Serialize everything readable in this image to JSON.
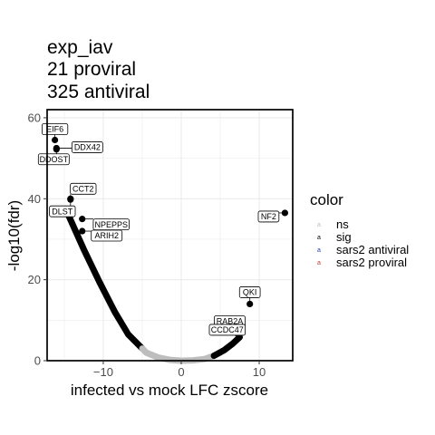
{
  "colors": {
    "panel_background": "#ffffff",
    "grid": "#ebebeb",
    "border": "#000000",
    "ns": "#bdbdbd",
    "sig": "#000000",
    "sars2_antiviral": "#1f3bb3",
    "sars2_proviral": "#c0392b"
  },
  "chart_data": {
    "type": "scatter",
    "title": [
      "exp_iav",
      "21 proviral",
      "325 antiviral"
    ],
    "xlabel": "infected vs mock LFC zscore",
    "ylabel": "-log10(fdr)",
    "xlim": [
      -17.2,
      14.3
    ],
    "ylim": [
      0,
      62
    ],
    "x_ticks": [
      -10,
      0,
      10
    ],
    "x_tick_labels": [
      "−10",
      "0",
      "10"
    ],
    "y_ticks": [
      0,
      20,
      40,
      60
    ],
    "y_tick_labels": [
      "0",
      "20",
      "40",
      "60"
    ],
    "grid": true,
    "legend": {
      "title": "color",
      "position": "right",
      "entries": [
        {
          "key": "ns",
          "label": "ns"
        },
        {
          "key": "sig",
          "label": "sig"
        },
        {
          "key": "sars2_antiviral",
          "label": "sars2 antiviral"
        },
        {
          "key": "sars2_proviral",
          "label": "sars2 proviral"
        }
      ]
    },
    "curves": [
      {
        "color": "sig",
        "points": [
          [
            -14.6,
            36.5
          ],
          [
            -12.5,
            27.5
          ],
          [
            -10.5,
            19.5
          ],
          [
            -8.5,
            12.0
          ],
          [
            -6.8,
            6.5
          ],
          [
            -5.0,
            3.0
          ]
        ]
      },
      {
        "color": "ns",
        "points": [
          [
            -5.0,
            3.0
          ],
          [
            -4.5,
            2.0
          ],
          [
            -3.0,
            0.8
          ],
          [
            -1.5,
            0.2
          ],
          [
            0.0,
            0.0
          ]
        ]
      },
      {
        "color": "ns",
        "points": [
          [
            0.0,
            0.0
          ],
          [
            1.5,
            0.1
          ],
          [
            3.0,
            0.4
          ],
          [
            4.2,
            1.2
          ]
        ]
      },
      {
        "color": "sig",
        "points": [
          [
            4.2,
            1.2
          ],
          [
            5.5,
            2.6
          ],
          [
            6.6,
            4.2
          ],
          [
            7.5,
            5.8
          ]
        ]
      }
    ],
    "points": [
      {
        "gene": "EIF6",
        "x": -16.2,
        "y": 54.5
      },
      {
        "gene": "DDX42",
        "x": -16.0,
        "y": 52.5
      },
      {
        "gene": "DDOST",
        "x": -16.0,
        "y": 52.2
      },
      {
        "gene": "CCT2",
        "x": -14.2,
        "y": 40.0
      },
      {
        "gene": "DLST",
        "x": -14.2,
        "y": 39.8
      },
      {
        "gene": "NPEPPS",
        "x": -12.7,
        "y": 35.0
      },
      {
        "gene": "ARIH2",
        "x": -12.7,
        "y": 32.0
      },
      {
        "gene": "NF2",
        "x": 13.3,
        "y": 36.5
      },
      {
        "gene": "QKI",
        "x": 8.8,
        "y": 14.0
      },
      {
        "gene": "RAB2A",
        "x": 7.5,
        "y": 7.5
      },
      {
        "gene": "CCDC47",
        "x": 7.3,
        "y": 6.5
      }
    ],
    "labels": [
      {
        "text": "EIF6",
        "of": "EIF6"
      },
      {
        "text": "DDX42",
        "of": "DDX42"
      },
      {
        "text": "DDOST",
        "of": "DDOST"
      },
      {
        "text": "CCT2",
        "of": "CCT2"
      },
      {
        "text": "DLST",
        "of": "DLST"
      },
      {
        "text": "NPEPPS",
        "of": "NPEPPS"
      },
      {
        "text": "ARIH2",
        "of": "ARIH2"
      },
      {
        "text": "NF2",
        "of": "NF2"
      },
      {
        "text": "QKI",
        "of": "QKI"
      },
      {
        "text": "RAB2A",
        "of": "RAB2A"
      },
      {
        "text": "CCDC47",
        "of": "CCDC47"
      }
    ]
  }
}
